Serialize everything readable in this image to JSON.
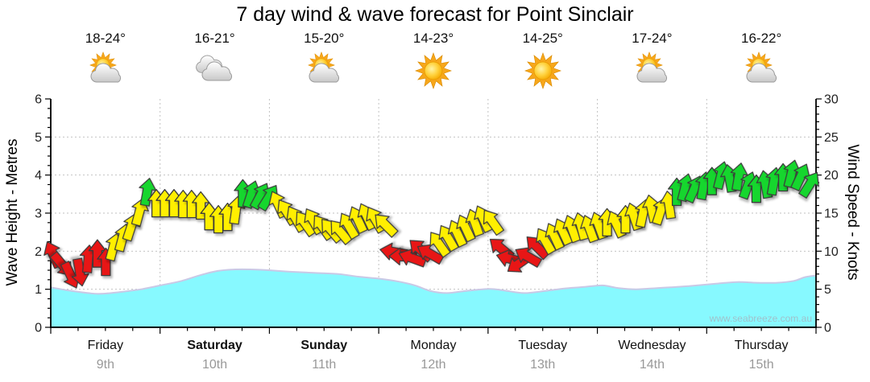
{
  "title": "7 day wind & wave forecast for Point Sinclair",
  "watermark": "www.seabreeze.com.au",
  "days": [
    {
      "name": "Friday",
      "date": "9th",
      "temp": "18-24°",
      "icon": "partly-cloudy",
      "weekend": false
    },
    {
      "name": "Saturday",
      "date": "10th",
      "temp": "16-21°",
      "icon": "cloudy",
      "weekend": true
    },
    {
      "name": "Sunday",
      "date": "11th",
      "temp": "15-20°",
      "icon": "partly-cloudy",
      "weekend": true
    },
    {
      "name": "Monday",
      "date": "12th",
      "temp": "14-23°",
      "icon": "sunny",
      "weekend": false
    },
    {
      "name": "Tuesday",
      "date": "13th",
      "temp": "14-25°",
      "icon": "sunny",
      "weekend": false
    },
    {
      "name": "Wednesday",
      "date": "14th",
      "temp": "17-24°",
      "icon": "partly-cloudy",
      "weekend": false
    },
    {
      "name": "Thursday",
      "date": "15th",
      "temp": "16-22°",
      "icon": "partly-cloudy",
      "weekend": false
    }
  ],
  "axes": {
    "left": {
      "label": "Wave Height - Metres",
      "ticks": [
        0,
        1,
        2,
        3,
        4,
        5,
        6
      ],
      "range": [
        0,
        6
      ]
    },
    "right": {
      "label": "Wind Speed - Knots",
      "ticks": [
        0,
        5,
        10,
        15,
        20,
        25,
        30
      ],
      "range": [
        0,
        30
      ]
    }
  },
  "colors": {
    "arrow_red": "#e81414",
    "arrow_yellow": "#ffef00",
    "arrow_green": "#12d62e",
    "arrow_outline": "#3a3a3a",
    "wave_fill": "#87f9ff",
    "wave_line": "#c9c9e6",
    "grid": "#c2c2c2",
    "axis": "#000000",
    "day_text": "#111111",
    "date_text": "#999999",
    "watermark_text": "#9fc2cc"
  },
  "chart_data": {
    "type": "area+vector",
    "title": "7 day wind & wave forecast for Point Sinclair",
    "x_axis": {
      "unit": "t = fraction of 7-day span",
      "categories": [
        "Friday 9th",
        "Saturday 10th",
        "Sunday 11th",
        "Monday 12th",
        "Tuesday 13th",
        "Wednesday 14th",
        "Thursday 15th"
      ],
      "minor_ticks": "quarter-day",
      "grid": "dotted at day boundaries"
    },
    "y_left": {
      "label": "Wave Height - Metres",
      "range": [
        0,
        6
      ],
      "grid": "dotted at 1..5"
    },
    "y_right": {
      "label": "Wind Speed - Knots",
      "range": [
        0,
        30
      ]
    },
    "wave_height_m": {
      "t": [
        0,
        0.023,
        0.049,
        0.065,
        0.092,
        0.118,
        0.143,
        0.171,
        0.197,
        0.218,
        0.239,
        0.265,
        0.285,
        0.313,
        0.344,
        0.376,
        0.402,
        0.428,
        0.455,
        0.476,
        0.497,
        0.518,
        0.544,
        0.573,
        0.592,
        0.618,
        0.644,
        0.671,
        0.697,
        0.721,
        0.742,
        0.765,
        0.792,
        0.818,
        0.844,
        0.871,
        0.897,
        0.923,
        0.949,
        0.971,
        0.986,
        1
      ],
      "metres": [
        1.05,
        0.97,
        0.9,
        0.88,
        0.93,
        1.0,
        1.1,
        1.22,
        1.38,
        1.48,
        1.52,
        1.52,
        1.5,
        1.46,
        1.43,
        1.4,
        1.33,
        1.28,
        1.2,
        1.1,
        0.95,
        0.9,
        0.96,
        1.01,
        0.97,
        0.9,
        0.95,
        1.02,
        1.06,
        1.1,
        1.03,
        1.0,
        1.03,
        1.06,
        1.1,
        1.15,
        1.19,
        1.17,
        1.17,
        1.22,
        1.32,
        1.36
      ]
    },
    "wind_arrows": {
      "schema": [
        "t",
        "knots",
        "dir_deg_clockwise_from_up",
        "color r=red y=yellow g=green"
      ],
      "points": [
        [
          0.003,
          9.6,
          -25,
          "r"
        ],
        [
          0.015,
          8.2,
          140,
          "r"
        ],
        [
          0.026,
          6.8,
          155,
          "r"
        ],
        [
          0.038,
          7.2,
          170,
          "r"
        ],
        [
          0.049,
          9.0,
          5,
          "r"
        ],
        [
          0.061,
          9.7,
          0,
          "r"
        ],
        [
          0.072,
          8.6,
          0,
          "r"
        ],
        [
          0.082,
          10.6,
          15,
          "y"
        ],
        [
          0.094,
          11.8,
          15,
          "y"
        ],
        [
          0.105,
          13.2,
          18,
          "y"
        ],
        [
          0.116,
          15.2,
          15,
          "y"
        ],
        [
          0.126,
          17.8,
          10,
          "g"
        ],
        [
          0.138,
          16.3,
          0,
          "y"
        ],
        [
          0.149,
          16.3,
          0,
          "y"
        ],
        [
          0.161,
          16.3,
          0,
          "y"
        ],
        [
          0.173,
          16.2,
          0,
          "y"
        ],
        [
          0.184,
          16.2,
          0,
          "y"
        ],
        [
          0.196,
          16.0,
          0,
          "y"
        ],
        [
          0.207,
          14.6,
          0,
          "y"
        ],
        [
          0.219,
          14.2,
          0,
          "y"
        ],
        [
          0.231,
          14.5,
          0,
          "y"
        ],
        [
          0.242,
          15.4,
          8,
          "y"
        ],
        [
          0.251,
          17.6,
          0,
          "g"
        ],
        [
          0.262,
          17.5,
          18,
          "g"
        ],
        [
          0.274,
          17.3,
          28,
          "g"
        ],
        [
          0.285,
          17.1,
          32,
          "g"
        ],
        [
          0.297,
          16.2,
          -25,
          "y"
        ],
        [
          0.308,
          15.2,
          -32,
          "y"
        ],
        [
          0.32,
          14.3,
          -30,
          "y"
        ],
        [
          0.332,
          13.7,
          -35,
          "y"
        ],
        [
          0.343,
          14.0,
          -30,
          "y"
        ],
        [
          0.355,
          13.2,
          -35,
          "y"
        ],
        [
          0.366,
          12.8,
          -40,
          "y"
        ],
        [
          0.378,
          12.6,
          -40,
          "y"
        ],
        [
          0.389,
          13.4,
          -30,
          "y"
        ],
        [
          0.401,
          14.2,
          -25,
          "y"
        ],
        [
          0.413,
          14.6,
          -25,
          "y"
        ],
        [
          0.424,
          14.2,
          -30,
          "y"
        ],
        [
          0.437,
          13.5,
          -45,
          "y"
        ],
        [
          0.448,
          9.9,
          -80,
          "r"
        ],
        [
          0.46,
          9.3,
          -88,
          "r"
        ],
        [
          0.472,
          9.1,
          -70,
          "r"
        ],
        [
          0.483,
          10.2,
          -48,
          "r"
        ],
        [
          0.495,
          9.7,
          -60,
          "r"
        ],
        [
          0.507,
          11.0,
          -35,
          "y"
        ],
        [
          0.519,
          11.8,
          -30,
          "y"
        ],
        [
          0.531,
          12.4,
          -25,
          "y"
        ],
        [
          0.542,
          13.1,
          -25,
          "y"
        ],
        [
          0.554,
          13.8,
          -20,
          "y"
        ],
        [
          0.565,
          14.3,
          -25,
          "y"
        ],
        [
          0.577,
          13.9,
          -35,
          "y"
        ],
        [
          0.588,
          10.4,
          -50,
          "r"
        ],
        [
          0.6,
          9.0,
          -75,
          "r"
        ],
        [
          0.612,
          8.4,
          -125,
          "r"
        ],
        [
          0.623,
          9.3,
          -60,
          "r"
        ],
        [
          0.635,
          10.6,
          -45,
          "r"
        ],
        [
          0.646,
          11.4,
          -30,
          "y"
        ],
        [
          0.658,
          12.0,
          -25,
          "y"
        ],
        [
          0.669,
          12.6,
          -25,
          "y"
        ],
        [
          0.681,
          13.0,
          -20,
          "y"
        ],
        [
          0.693,
          13.3,
          -15,
          "y"
        ],
        [
          0.704,
          13.0,
          -20,
          "y"
        ],
        [
          0.716,
          13.4,
          -20,
          "y"
        ],
        [
          0.727,
          13.8,
          0,
          "y"
        ],
        [
          0.739,
          13.6,
          -25,
          "y"
        ],
        [
          0.751,
          14.2,
          0,
          "y"
        ],
        [
          0.762,
          14.6,
          -18,
          "y"
        ],
        [
          0.774,
          15.0,
          12,
          "y"
        ],
        [
          0.785,
          15.6,
          -12,
          "y"
        ],
        [
          0.797,
          15.3,
          18,
          "y"
        ],
        [
          0.808,
          16.1,
          -8,
          "y"
        ],
        [
          0.818,
          17.8,
          0,
          "g"
        ],
        [
          0.829,
          18.4,
          14,
          "g"
        ],
        [
          0.841,
          18.2,
          24,
          "g"
        ],
        [
          0.853,
          18.6,
          10,
          "g"
        ],
        [
          0.864,
          19.2,
          0,
          "g"
        ],
        [
          0.876,
          20.0,
          14,
          "g"
        ],
        [
          0.887,
          19.6,
          -10,
          "g"
        ],
        [
          0.899,
          19.8,
          10,
          "g"
        ],
        [
          0.911,
          18.7,
          20,
          "g"
        ],
        [
          0.922,
          18.2,
          0,
          "g"
        ],
        [
          0.934,
          18.8,
          -10,
          "g"
        ],
        [
          0.945,
          19.2,
          10,
          "g"
        ],
        [
          0.957,
          19.7,
          0,
          "g"
        ],
        [
          0.968,
          20.2,
          14,
          "g"
        ],
        [
          0.98,
          19.8,
          25,
          "g"
        ],
        [
          0.992,
          18.8,
          32,
          "g"
        ]
      ]
    }
  }
}
